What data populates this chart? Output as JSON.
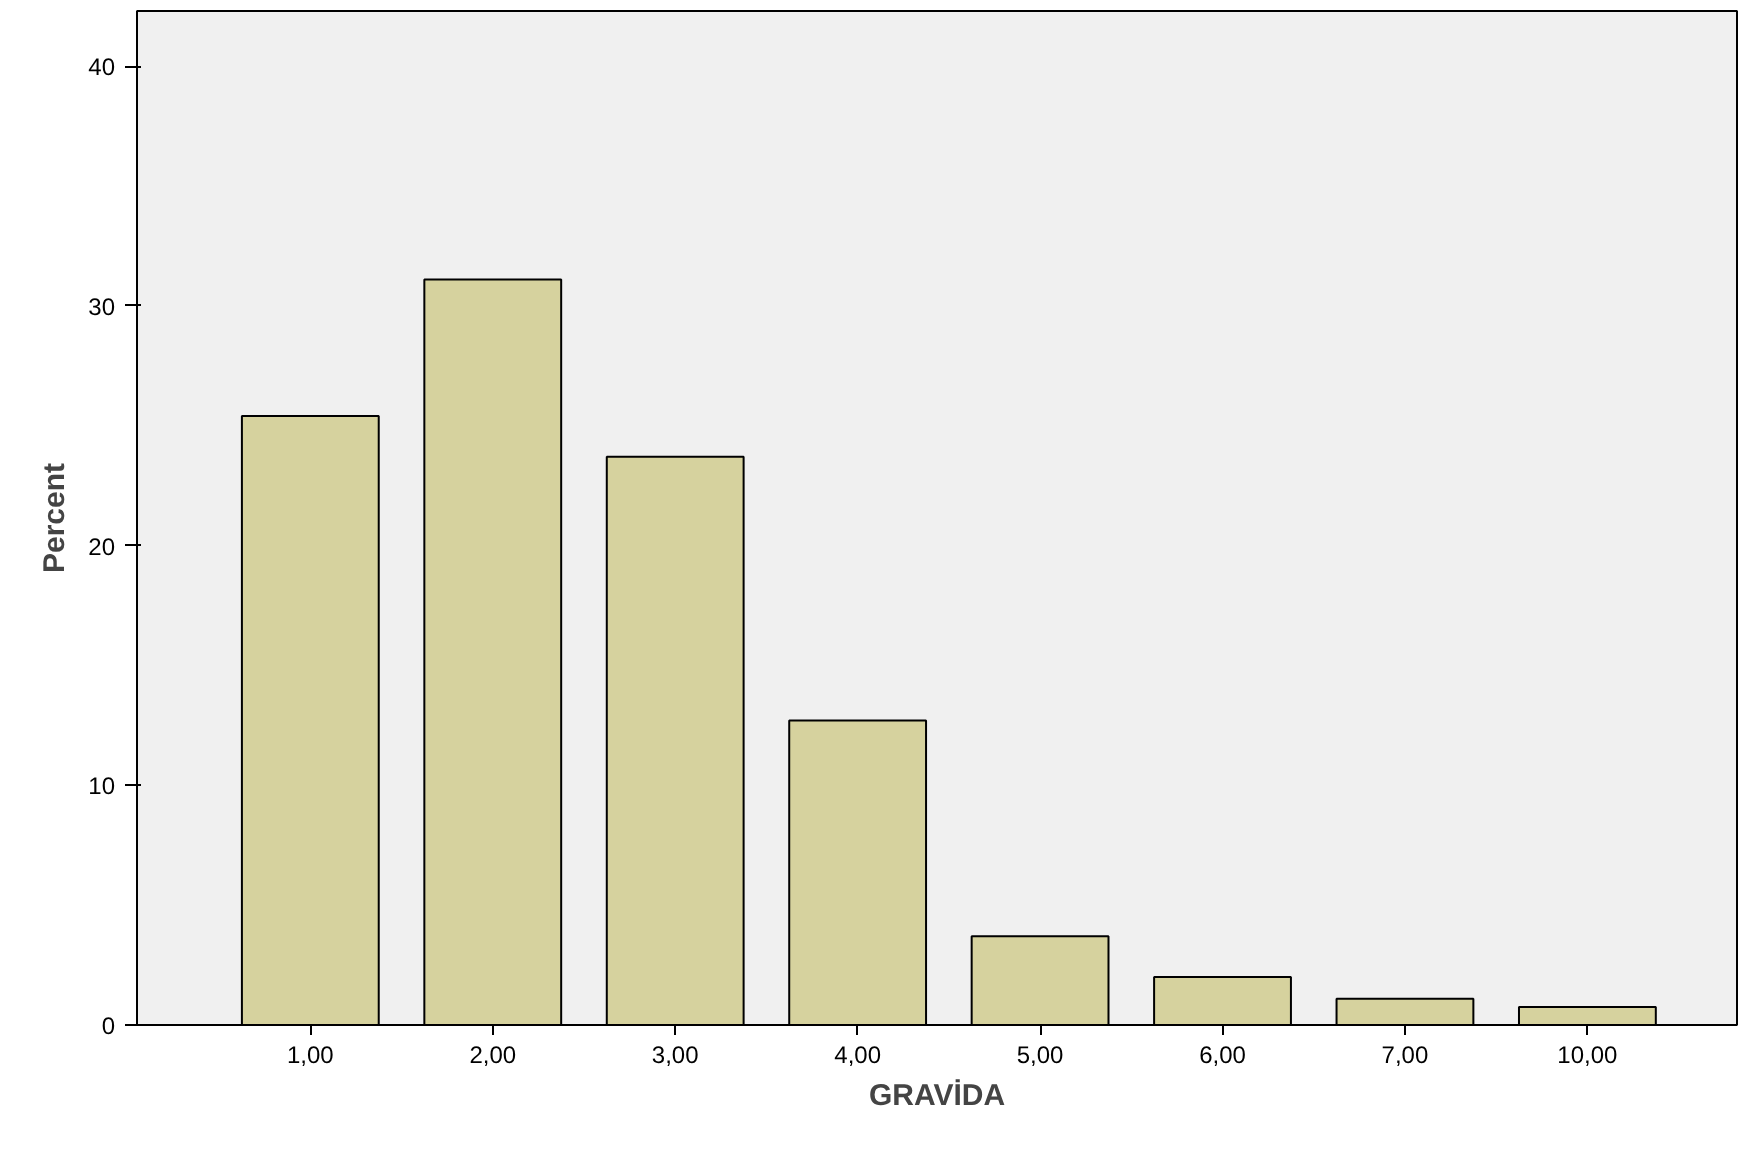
{
  "chart_data": {
    "type": "bar",
    "xlabel": "GRAVİDA",
    "ylabel": "Percent",
    "categories": [
      "1,00",
      "2,00",
      "3,00",
      "4,00",
      "5,00",
      "6,00",
      "7,00",
      "10,00"
    ],
    "values": [
      25.4,
      31.1,
      23.7,
      12.7,
      3.7,
      2.0,
      1.1,
      0.75
    ],
    "color": "#d6d29e",
    "ylim": [
      0,
      42.3
    ],
    "yticks": [
      0,
      10,
      20,
      30,
      40
    ],
    "grid": false
  }
}
